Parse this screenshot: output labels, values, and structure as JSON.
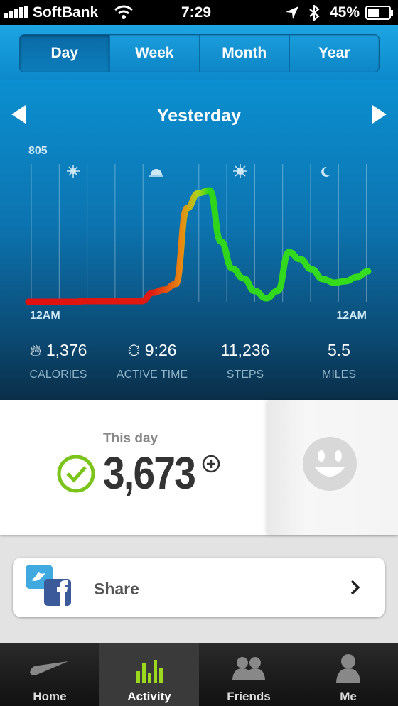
{
  "status_bar": {
    "carrier": "SoftBank",
    "time": "7:29",
    "battery": "45%"
  },
  "period_tabs": [
    "Day",
    "Week",
    "Month",
    "Year"
  ],
  "day_title": "Yesterday",
  "graph": {
    "ymax": 805,
    "x_labels": [
      "12AM",
      "12AM"
    ],
    "values": [
      20,
      20,
      20,
      20,
      20,
      24,
      24,
      24,
      24,
      24,
      24,
      72,
      89,
      121,
      551,
      636,
      652,
      362,
      209,
      153,
      81,
      40,
      81,
      302,
      262,
      205,
      149,
      129,
      137,
      161,
      193
    ]
  },
  "stats": [
    {
      "value": "1,376",
      "label": "CALORIES"
    },
    {
      "value": "9:26",
      "label": "ACTIVE TIME"
    },
    {
      "value": "11,236",
      "label": "STEPS"
    },
    {
      "value": "5.5",
      "label": "MILES"
    }
  ],
  "fuel_card": {
    "caption": "This day",
    "value": "3,673"
  },
  "share": {
    "label": "Share"
  },
  "tab_bar": [
    "Home",
    "Activity",
    "Friends",
    "Me"
  ]
}
